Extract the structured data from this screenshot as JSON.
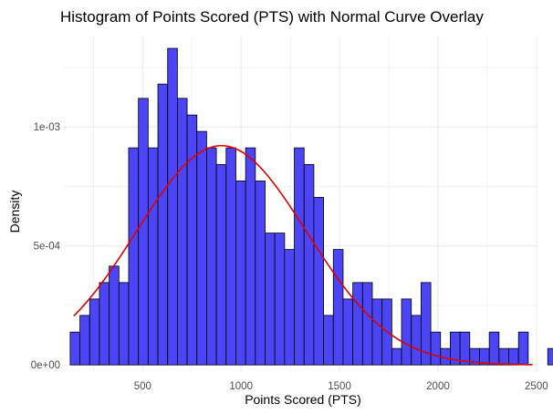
{
  "chart_data": {
    "type": "bar",
    "title": "Histogram of Points Scored (PTS) with Normal Curve Overlay",
    "xlabel": "Points Scored (PTS)",
    "ylabel": "Density",
    "xlim": [
      100,
      2510
    ],
    "ylim": [
      -3e-05,
      0.00138
    ],
    "x_ticks": [
      {
        "value": 500,
        "label": "500"
      },
      {
        "value": 1000,
        "label": "1000"
      },
      {
        "value": 1500,
        "label": "1500"
      },
      {
        "value": 2000,
        "label": "2000"
      },
      {
        "value": 2500,
        "label": "2500"
      }
    ],
    "y_ticks": [
      {
        "value": 0,
        "label": "0e+00"
      },
      {
        "value": 0.0005,
        "label": "5e-04"
      },
      {
        "value": 0.001,
        "label": "1e-03"
      }
    ],
    "grid": true,
    "bin_start": 132,
    "bin_width": 49.5,
    "bar_values": [
      0.000138,
      0.000208,
      0.000277,
      0.000346,
      0.000415,
      0.000346,
      0.000912,
      0.00112,
      0.000912,
      0.00118,
      0.00133,
      0.00112,
      0.00105,
      0.000981,
      0.000912,
      0.000842,
      0.000912,
      0.000773,
      0.000912,
      0.000773,
      0.000554,
      0.000554,
      0.000485,
      0.000912,
      0.000842,
      0.000704,
      0.000208,
      0.000485,
      0.000277,
      0.000346,
      0.000346,
      0.000277,
      0.000277,
      6.9e-05,
      0.000277,
      0.000208,
      0.000346,
      0.000138,
      6.9e-05,
      0.000138,
      0.000138,
      6.9e-05,
      6.9e-05,
      0.000138,
      6.9e-05,
      6.9e-05,
      0.000138,
      0.0,
      0.0,
      6.9e-05
    ],
    "bar_fill": "#4B45F5",
    "bar_stroke": "#000000",
    "curve": {
      "mean": 900,
      "sd": 433,
      "x_range": [
        150,
        2480
      ],
      "color": "#E00000"
    },
    "grid_color": "#EBEBEB"
  }
}
